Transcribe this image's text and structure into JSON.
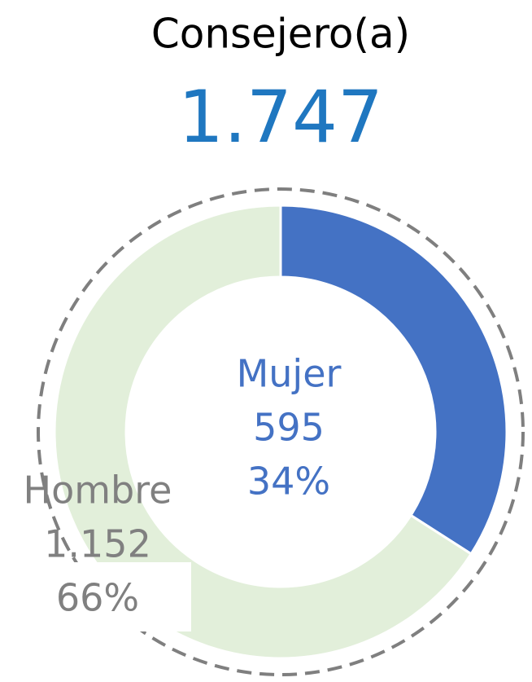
{
  "chart_data": {
    "type": "donut",
    "title": "Consejero(a)",
    "total": {
      "value": 1747,
      "label": "1.747"
    },
    "categories": [
      "Mujer",
      "Hombre"
    ],
    "values": [
      595,
      1152
    ],
    "value_labels": [
      "595",
      "1.152"
    ],
    "percent_labels": [
      "34%",
      "66%"
    ],
    "colors": [
      "#4472c4",
      "#e2efda"
    ],
    "label_colors": [
      "#4472c4",
      "#808080"
    ],
    "total_color": "#1f77c0"
  }
}
